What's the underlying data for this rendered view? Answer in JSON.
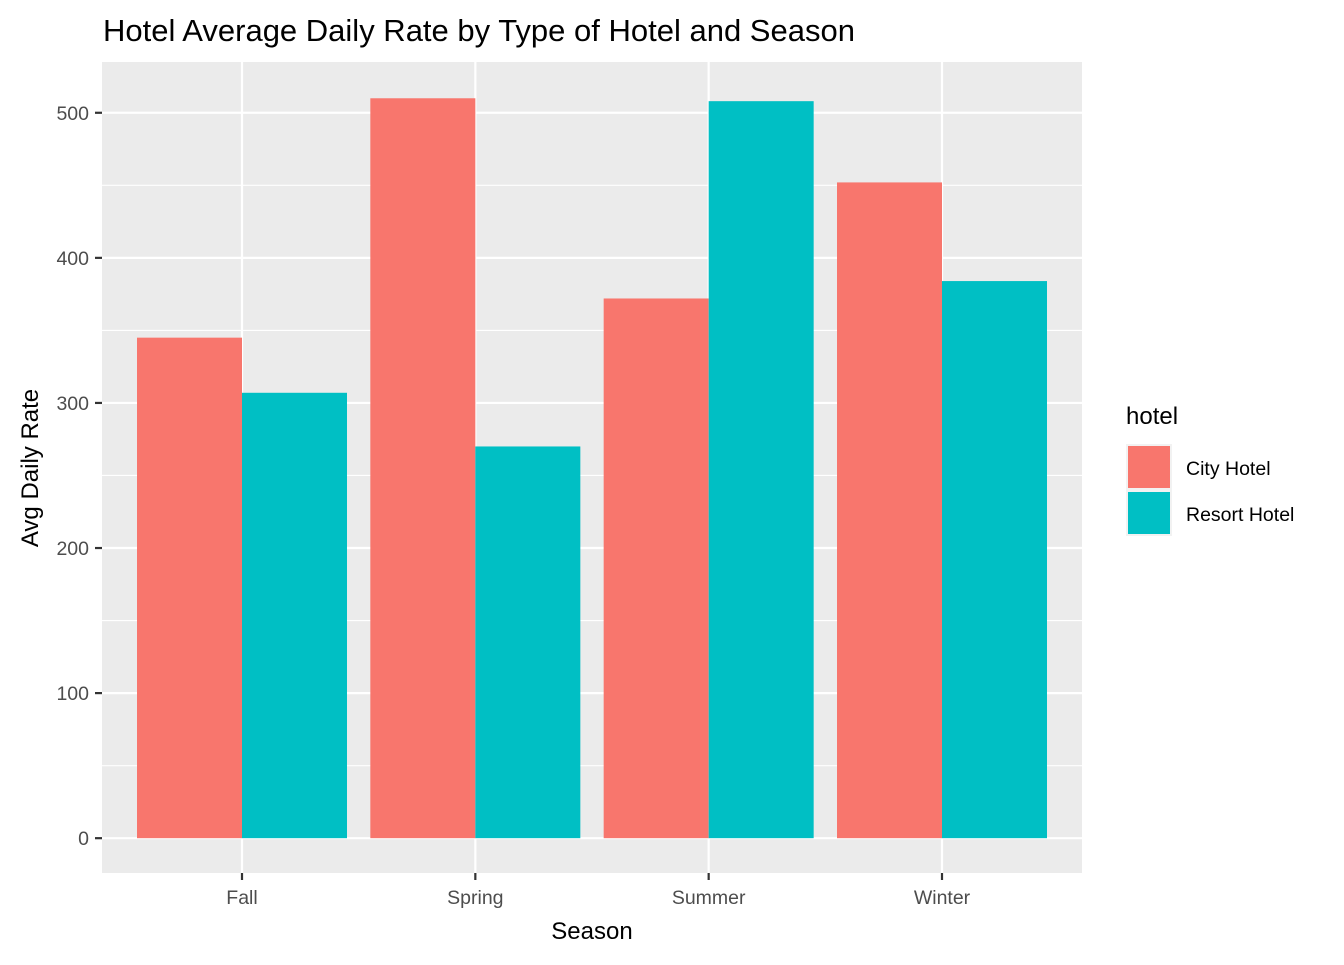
{
  "chart_data": {
    "type": "bar",
    "title": "Hotel Average Daily Rate by Type of Hotel and Season",
    "xlabel": "Season",
    "ylabel": "Avg Daily Rate",
    "categories": [
      "Fall",
      "Spring",
      "Summer",
      "Winter"
    ],
    "series": [
      {
        "name": "City Hotel",
        "color": "#F8766D",
        "values": [
          345,
          510,
          372,
          452
        ]
      },
      {
        "name": "Resort Hotel",
        "color": "#00BFC4",
        "values": [
          307,
          270,
          508,
          384
        ]
      }
    ],
    "ylim": [
      -24,
      535
    ],
    "yticks": [
      0,
      100,
      200,
      300,
      400,
      500
    ],
    "yticks_minor": [
      50,
      150,
      250,
      350,
      450
    ],
    "grid": true,
    "legend": {
      "title": "hotel",
      "placement": "right"
    },
    "panel_background": "#EBEBEB",
    "grid_color": "#FFFFFF"
  }
}
